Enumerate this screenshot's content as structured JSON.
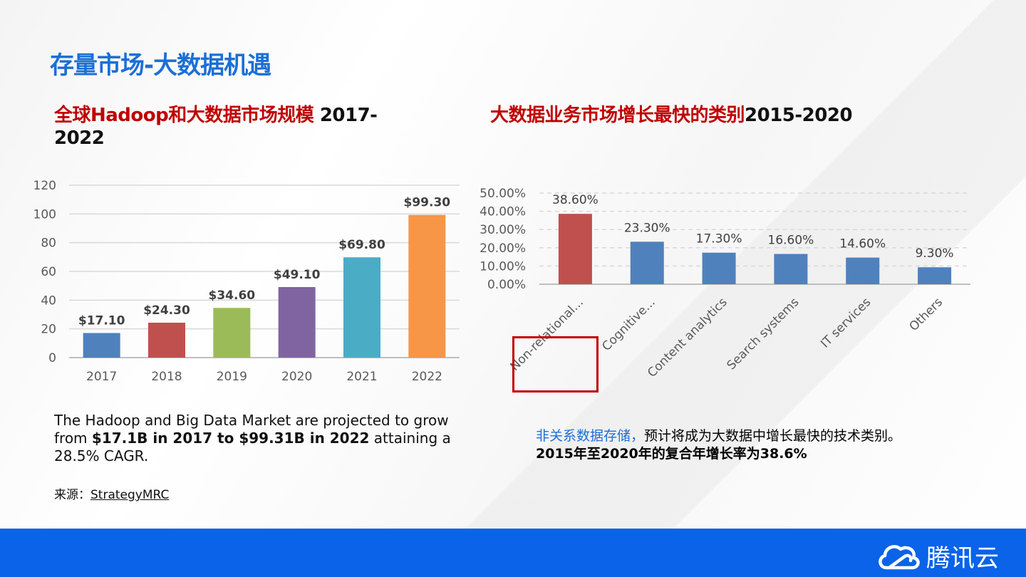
{
  "title": "存量市场-大数据机遇",
  "left": {
    "subtitle_red": "全球Hadoop和大数据市场规模",
    "subtitle_black_1": " 2017-",
    "subtitle_black_2": "2022",
    "desc_1": "The Hadoop and Big Data Market are projected to grow from ",
    "desc_bold": "$17.1B in 2017 to $99.31B in 2022",
    "desc_2": " attaining a 28.5% CAGR.",
    "source_label": "来源：",
    "source_link": "StrategyMRC"
  },
  "right": {
    "subtitle_red": "大数据业务市场增长最快的类别",
    "subtitle_black": "2015-2020",
    "note_blue": "非关系数据存储，",
    "note_1": "预计将成为大数据中增长最快的技术类别。",
    "note_2": "2015年至2020年的复合年增长率为38.6%"
  },
  "brand": "腾讯云",
  "chart_data": [
    {
      "type": "bar",
      "title": "全球Hadoop和大数据市场规模 2017-2022",
      "categories": [
        "2017",
        "2018",
        "2019",
        "2020",
        "2021",
        "2022"
      ],
      "values": [
        17.1,
        24.3,
        34.6,
        49.1,
        69.8,
        99.3
      ],
      "labels": [
        "$17.10",
        "$24.30",
        "$34.60",
        "$49.10",
        "$69.80",
        "$99.30"
      ],
      "colors": [
        "#4f81bd",
        "#c0504d",
        "#9bbb59",
        "#8064a2",
        "#4bacc6",
        "#f79646"
      ],
      "yticks": [
        "0",
        "20",
        "40",
        "60",
        "80",
        "100",
        "120"
      ],
      "ylim": [
        0,
        120
      ],
      "grid": true
    },
    {
      "type": "bar",
      "title": "大数据业务市场增长最快的类别2015-2020",
      "categories": [
        "Non-relational...",
        "Cognitive...",
        "Content analytics",
        "Search systems",
        "IT services",
        "Others"
      ],
      "values": [
        38.6,
        23.3,
        17.3,
        16.6,
        14.6,
        9.3
      ],
      "labels": [
        "38.60%",
        "23.30%",
        "17.30%",
        "16.60%",
        "14.60%",
        "9.30%"
      ],
      "colors": [
        "#c0504d",
        "#4f81bd",
        "#4f81bd",
        "#4f81bd",
        "#4f81bd",
        "#4f81bd"
      ],
      "yticks": [
        "0.00%",
        "10.00%",
        "20.00%",
        "30.00%",
        "40.00%",
        "50.00%"
      ],
      "ylim": [
        0,
        50
      ],
      "grid": true,
      "highlighted": "Non-relational..."
    }
  ]
}
